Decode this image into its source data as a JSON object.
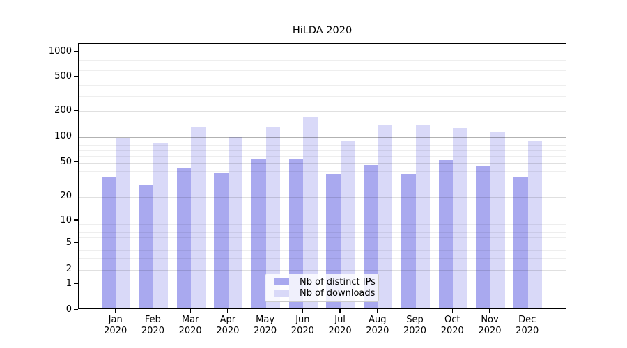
{
  "figure": {
    "title": "HiLDA 2020",
    "background": "#ffffff"
  },
  "chart_data": {
    "type": "bar",
    "title": "HiLDA 2020",
    "categories": [
      "Jan 2020",
      "Feb 2020",
      "Mar 2020",
      "Apr 2020",
      "May 2020",
      "Jun 2020",
      "Jul 2020",
      "Aug 2020",
      "Sep 2020",
      "Oct 2020",
      "Nov 2020",
      "Dec 2020"
    ],
    "x_tick_month": [
      "Jan",
      "Feb",
      "Mar",
      "Apr",
      "May",
      "Jun",
      "Jul",
      "Aug",
      "Sep",
      "Oct",
      "Nov",
      "Dec"
    ],
    "x_tick_year": "2020",
    "series": [
      {
        "name": "Nb of distinct IPs",
        "color": "#a9a9ef",
        "values": [
          33,
          26,
          42,
          37,
          52,
          53,
          35,
          45,
          35,
          51,
          44,
          33
        ]
      },
      {
        "name": "Nb of downloads",
        "color": "#d9d9f8",
        "values": [
          93,
          82,
          126,
          96,
          125,
          165,
          87,
          130,
          130,
          122,
          111,
          87
        ]
      }
    ],
    "xlabel": "",
    "ylabel": "",
    "yscale": "symlog",
    "ylim": [
      0,
      1240
    ],
    "y_ticks": [
      0,
      1,
      2,
      5,
      10,
      20,
      50,
      100,
      200,
      500,
      1000
    ],
    "y_major_grid_ticks": [
      1,
      10,
      100,
      1000
    ],
    "y_minor_grid_ticks": [
      3,
      4,
      6,
      7,
      8,
      9,
      30,
      40,
      60,
      70,
      80,
      90,
      300,
      400,
      600,
      700,
      800,
      900
    ],
    "grid": "both",
    "legend_position": "lower center (inside axes)"
  },
  "legend": {
    "entries": [
      {
        "label": "Nb of distinct IPs",
        "color": "#a9a9ef"
      },
      {
        "label": "Nb of downloads",
        "color": "#d9d9f8"
      }
    ]
  },
  "colors": {
    "bar_ips": "#a9a9ef",
    "bar_downloads": "#d9d9f8",
    "spine": "#000000",
    "grid_major": "#b3b3b3",
    "grid_minor": "#e0e0e0"
  }
}
